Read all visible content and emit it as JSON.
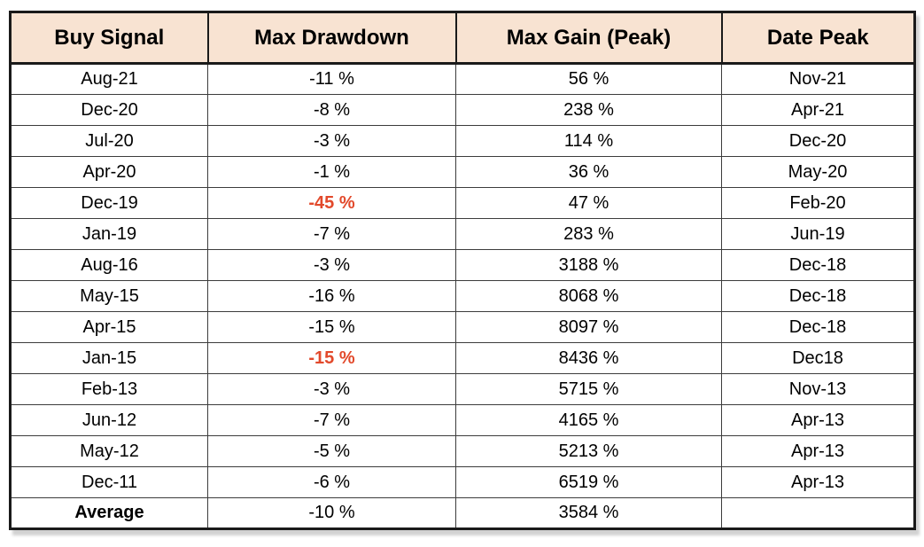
{
  "colors": {
    "header_bg": "#f8e3d2",
    "highlight_red": "#e2492b",
    "border_dark": "#1a1a1a",
    "body_text": "#000000"
  },
  "chart_data": {
    "type": "table",
    "columns": [
      "Buy Signal",
      "Max Drawdown",
      "Max Gain (Peak)",
      "Date Peak"
    ],
    "rows": [
      {
        "cells": [
          "Aug-21",
          "-11 %",
          "56 %",
          "Nov-21"
        ],
        "red_cells": [],
        "bold_cells": []
      },
      {
        "cells": [
          "Dec-20",
          "-8 %",
          "238 %",
          "Apr-21"
        ],
        "red_cells": [],
        "bold_cells": []
      },
      {
        "cells": [
          "Jul-20",
          "-3 %",
          "114 %",
          "Dec-20"
        ],
        "red_cells": [],
        "bold_cells": []
      },
      {
        "cells": [
          "Apr-20",
          "-1 %",
          "36 %",
          "May-20"
        ],
        "red_cells": [],
        "bold_cells": []
      },
      {
        "cells": [
          "Dec-19",
          "-45 %",
          "47 %",
          "Feb-20"
        ],
        "red_cells": [
          1
        ],
        "bold_cells": []
      },
      {
        "cells": [
          "Jan-19",
          "-7 %",
          "283 %",
          "Jun-19"
        ],
        "red_cells": [],
        "bold_cells": []
      },
      {
        "cells": [
          "Aug-16",
          "-3 %",
          "3188 %",
          "Dec-18"
        ],
        "red_cells": [],
        "bold_cells": []
      },
      {
        "cells": [
          "May-15",
          "-16 %",
          "8068 %",
          "Dec-18"
        ],
        "red_cells": [],
        "bold_cells": []
      },
      {
        "cells": [
          "Apr-15",
          "-15 %",
          "8097 %",
          "Dec-18"
        ],
        "red_cells": [],
        "bold_cells": []
      },
      {
        "cells": [
          "Jan-15",
          "-15 %",
          "8436 %",
          "Dec18"
        ],
        "red_cells": [
          1
        ],
        "bold_cells": []
      },
      {
        "cells": [
          "Feb-13",
          "-3 %",
          "5715 %",
          "Nov-13"
        ],
        "red_cells": [],
        "bold_cells": []
      },
      {
        "cells": [
          "Jun-12",
          "-7 %",
          "4165 %",
          "Apr-13"
        ],
        "red_cells": [],
        "bold_cells": []
      },
      {
        "cells": [
          "May-12",
          "-5 %",
          "5213 %",
          "Apr-13"
        ],
        "red_cells": [],
        "bold_cells": []
      },
      {
        "cells": [
          "Dec-11",
          "-6 %",
          "6519 %",
          "Apr-13"
        ],
        "red_cells": [],
        "bold_cells": []
      },
      {
        "cells": [
          "Average",
          "-10 %",
          "3584 %",
          ""
        ],
        "red_cells": [],
        "bold_cells": [
          0
        ]
      }
    ]
  }
}
